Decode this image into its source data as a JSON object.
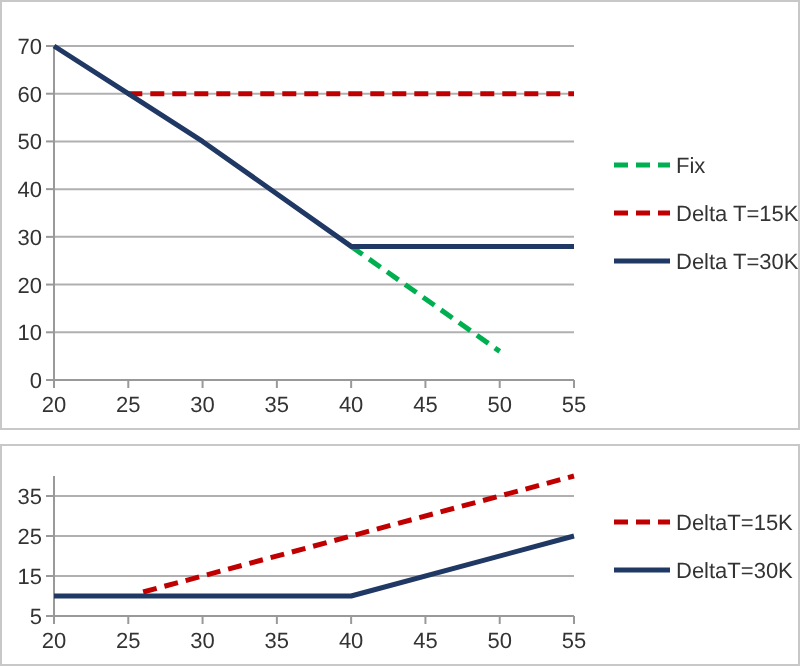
{
  "chart_data": [
    {
      "type": "line",
      "xlim": [
        20,
        55
      ],
      "xticks": [
        20,
        25,
        30,
        35,
        40,
        45,
        50,
        55
      ],
      "ylim": [
        0,
        70
      ],
      "yticks": [
        0,
        10,
        20,
        30,
        40,
        50,
        60,
        70
      ],
      "grid": "y",
      "legend": "right",
      "series": [
        {
          "name": "Fix",
          "color": "#00b050",
          "line_style": "dashed",
          "x": [
            40,
            50
          ],
          "values": [
            28,
            6
          ]
        },
        {
          "name": "Delta T=15K",
          "color": "#c00000",
          "line_style": "dashed",
          "x": [
            25,
            55
          ],
          "values": [
            60,
            60
          ]
        },
        {
          "name": "Delta T=30K",
          "color": "#1f3864",
          "line_style": "solid",
          "x": [
            20,
            25,
            30,
            40,
            55
          ],
          "values": [
            70,
            60,
            50,
            28,
            28
          ]
        }
      ]
    },
    {
      "type": "line",
      "xlim": [
        20,
        55
      ],
      "xticks": [
        20,
        25,
        30,
        35,
        40,
        45,
        50,
        55
      ],
      "ylim": [
        5,
        40
      ],
      "yticks": [
        5,
        15,
        25,
        35
      ],
      "grid": "y",
      "legend": "right",
      "series": [
        {
          "name": "DeltaT=15K",
          "color": "#c00000",
          "line_style": "dashed",
          "x": [
            26,
            55
          ],
          "values": [
            11,
            40
          ]
        },
        {
          "name": "DeltaT=30K",
          "color": "#1f3864",
          "line_style": "solid",
          "x": [
            20,
            40,
            55
          ],
          "values": [
            10,
            10,
            25
          ]
        }
      ]
    }
  ]
}
